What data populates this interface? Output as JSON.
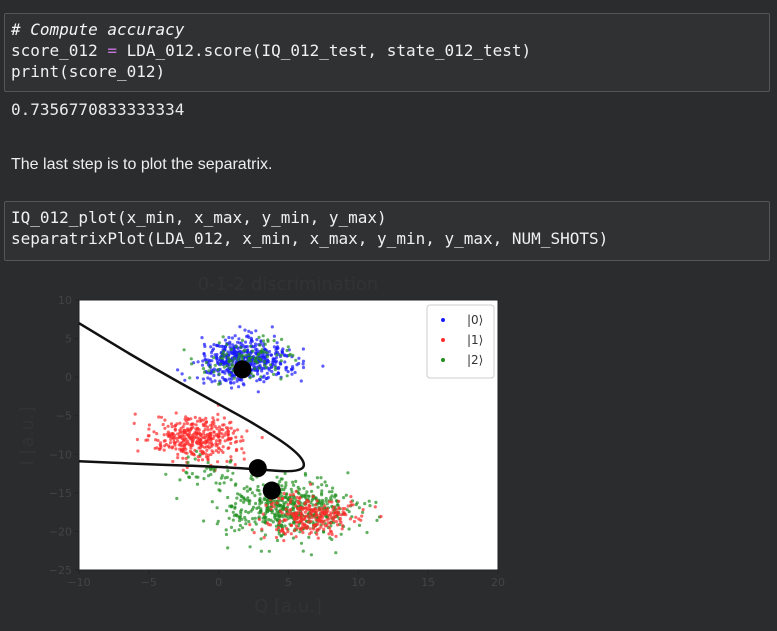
{
  "cell1": {
    "line1": "# Compute accuracy",
    "line2_a": "score_012 ",
    "line2_op": "=",
    "line2_b": " LDA_012.score(IQ_012_test, state_012_test)",
    "line3": "print(score_012)"
  },
  "output1": "0.7356770833333334",
  "markdown": "The last step is to plot the separatrix.",
  "cell2": {
    "line1": "IQ_012_plot(x_min, x_max, y_min, y_max)",
    "line2": "separatrixPlot(LDA_012, x_min, x_max, y_min, y_max, NUM_SHOTS)"
  },
  "chart_data": {
    "type": "scatter",
    "title": "0-1-2 discrimination",
    "xlabel": "Q [a.u.]",
    "ylabel": "I [a.u.]",
    "xlim": [
      -10,
      20
    ],
    "ylim": [
      -25,
      10
    ],
    "xticks": [
      "−10",
      "−5",
      "0",
      "5",
      "10",
      "15",
      "20"
    ],
    "yticks": [
      "10",
      "5",
      "0",
      "−5",
      "−10",
      "−15",
      "−20",
      "−25"
    ],
    "legend_position": "top-right",
    "series": [
      {
        "name": "|0⟩",
        "color": "#1a1aff",
        "center": [
          1.8,
          2.2
        ],
        "spread": [
          1.6,
          1.3
        ]
      },
      {
        "name": "|1⟩",
        "color": "#ff2a2a",
        "centers": [
          [
            -1.5,
            -8
          ],
          [
            6.5,
            -18
          ]
        ],
        "spread": [
          1.6,
          1.4
        ]
      },
      {
        "name": "|2⟩",
        "color": "#1f8f1f",
        "center": [
          5,
          -17
        ],
        "spread": [
          2.3,
          1.8
        ]
      }
    ],
    "centroids": [
      [
        1.7,
        1.0
      ],
      [
        2.8,
        -11.8
      ],
      [
        3.8,
        -14.7
      ]
    ],
    "separatrix": [
      [
        -10,
        7
      ],
      [
        -5,
        1.5
      ],
      [
        0,
        -3.5
      ],
      [
        3,
        -6.5
      ],
      [
        5.5,
        -9.5
      ],
      [
        6.3,
        -11.5
      ],
      [
        5.5,
        -12.3
      ],
      [
        3,
        -12.0
      ],
      [
        0,
        -11.6
      ],
      [
        -5,
        -11.3
      ],
      [
        -10,
        -10.9
      ]
    ]
  }
}
